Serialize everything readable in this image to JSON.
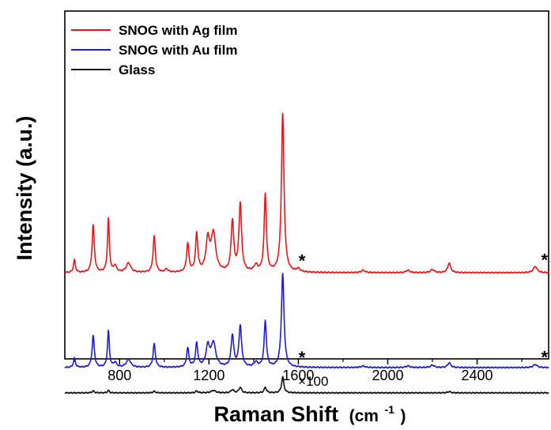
{
  "chart_data": {
    "type": "line",
    "title": "",
    "xlabel": "Raman Shift",
    "xlabel_unit": "(cm",
    "xlabel_unit_sup": "-1",
    "xlabel_unit_close": ")",
    "ylabel": "Intensity (a.u.)",
    "xlim": [
      555,
      2720
    ],
    "x_ticks": [
      800,
      1200,
      1600,
      2000,
      2400
    ],
    "x_tick_labels": [
      "800",
      "1200",
      "1600",
      "2000",
      "2400"
    ],
    "y_ticks_shown": false,
    "grid": false,
    "legend_position": "top-left",
    "y_scale": "arbitrary units, stacked offsets",
    "series": [
      {
        "name": "SNOG with Ag film",
        "color": "#e8161b",
        "baseline": 100,
        "peaks": [
          {
            "x": 598,
            "h": 8,
            "w": 5
          },
          {
            "x": 682,
            "h": 30,
            "w": 6
          },
          {
            "x": 750,
            "h": 34,
            "w": 5
          },
          {
            "x": 780,
            "h": 4,
            "w": 8
          },
          {
            "x": 840,
            "h": 6,
            "w": 12
          },
          {
            "x": 955,
            "h": 23,
            "w": 6
          },
          {
            "x": 1010,
            "h": 2,
            "w": 8
          },
          {
            "x": 1105,
            "h": 18,
            "w": 6
          },
          {
            "x": 1145,
            "h": 24,
            "w": 6
          },
          {
            "x": 1195,
            "h": 20,
            "w": 10
          },
          {
            "x": 1220,
            "h": 24,
            "w": 12
          },
          {
            "x": 1305,
            "h": 32,
            "w": 7
          },
          {
            "x": 1340,
            "h": 43,
            "w": 7
          },
          {
            "x": 1410,
            "h": 4,
            "w": 10
          },
          {
            "x": 1452,
            "h": 49,
            "w": 6
          },
          {
            "x": 1530,
            "h": 100,
            "w": 7
          },
          {
            "x": 1600,
            "h": 2,
            "w": 10
          },
          {
            "x": 1890,
            "h": 1.5,
            "w": 10
          },
          {
            "x": 2090,
            "h": 1.5,
            "w": 10
          },
          {
            "x": 2200,
            "h": 2,
            "w": 10
          },
          {
            "x": 2275,
            "h": 6,
            "w": 8
          },
          {
            "x": 2660,
            "h": 4,
            "w": 10
          }
        ]
      },
      {
        "name": "SNOG with Au film",
        "color": "#1f1bd6",
        "baseline": 40,
        "peaks": [
          {
            "x": 598,
            "h": 6,
            "w": 5
          },
          {
            "x": 682,
            "h": 20,
            "w": 6
          },
          {
            "x": 750,
            "h": 23,
            "w": 5
          },
          {
            "x": 780,
            "h": 3,
            "w": 8
          },
          {
            "x": 840,
            "h": 5,
            "w": 12
          },
          {
            "x": 955,
            "h": 15,
            "w": 6
          },
          {
            "x": 1105,
            "h": 12,
            "w": 6
          },
          {
            "x": 1145,
            "h": 15,
            "w": 6
          },
          {
            "x": 1195,
            "h": 13,
            "w": 10
          },
          {
            "x": 1220,
            "h": 15,
            "w": 12
          },
          {
            "x": 1305,
            "h": 20,
            "w": 7
          },
          {
            "x": 1340,
            "h": 26,
            "w": 7
          },
          {
            "x": 1410,
            "h": 3,
            "w": 10
          },
          {
            "x": 1452,
            "h": 29,
            "w": 6
          },
          {
            "x": 1530,
            "h": 59,
            "w": 7
          },
          {
            "x": 1890,
            "h": 1,
            "w": 10
          },
          {
            "x": 2090,
            "h": 1,
            "w": 10
          },
          {
            "x": 2200,
            "h": 1.5,
            "w": 10
          },
          {
            "x": 2275,
            "h": 3,
            "w": 8
          },
          {
            "x": 2660,
            "h": 2,
            "w": 10
          }
        ]
      },
      {
        "name": "Glass",
        "color": "#111111",
        "baseline": 24,
        "peaks": [
          {
            "x": 682,
            "h": 1.2,
            "w": 6
          },
          {
            "x": 750,
            "h": 1.5,
            "w": 5
          },
          {
            "x": 955,
            "h": 1,
            "w": 6
          },
          {
            "x": 1145,
            "h": 1.2,
            "w": 6
          },
          {
            "x": 1220,
            "h": 1.5,
            "w": 12
          },
          {
            "x": 1305,
            "h": 2,
            "w": 7
          },
          {
            "x": 1340,
            "h": 3.5,
            "w": 7
          },
          {
            "x": 1452,
            "h": 3.5,
            "w": 6
          },
          {
            "x": 1530,
            "h": 10,
            "w": 6
          },
          {
            "x": 2275,
            "h": 0.8,
            "w": 8
          }
        ]
      }
    ],
    "annotations": [
      {
        "text": "*",
        "series": "SNOG with Ag film",
        "x": 1580
      },
      {
        "text": "*",
        "series": "SNOG with Ag film",
        "x": 2665
      },
      {
        "text": "*",
        "series": "SNOG with Au film",
        "x": 1580
      },
      {
        "text": "*",
        "series": "SNOG with Au film",
        "x": 2665
      },
      {
        "text": "×100",
        "series": "Glass",
        "x": 1585
      }
    ]
  }
}
